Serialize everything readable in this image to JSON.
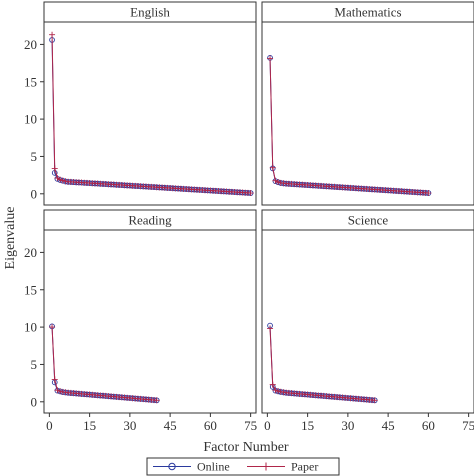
{
  "chart_data": {
    "type": "line",
    "xlabel": "Factor Number",
    "ylabel": "Eigenvalue",
    "xlim": [
      -2,
      77
    ],
    "ylim": [
      -1.5,
      23
    ],
    "xticks": [
      "0",
      "15",
      "30",
      "45",
      "60",
      "75"
    ],
    "yticks": [
      "0",
      "5",
      "10",
      "15",
      "20"
    ],
    "legend": {
      "position": "bottom-center",
      "entries": [
        {
          "name": "Online",
          "marker": "circle",
          "color": "#2b3a9e"
        },
        {
          "name": "Paper",
          "marker": "plus",
          "color": "#b0264a"
        }
      ]
    },
    "panels": [
      {
        "title": "English",
        "factors": 75,
        "series": [
          {
            "name": "Online",
            "head": [
              20.6,
              2.8,
              2.0,
              1.85,
              1.75,
              1.65
            ],
            "tail_start": 1.6,
            "tail_end": 0.1
          },
          {
            "name": "Paper",
            "head": [
              21.3,
              3.4,
              2.1,
              1.9,
              1.78,
              1.68
            ],
            "tail_start": 1.62,
            "tail_end": 0.1
          }
        ]
      },
      {
        "title": "Mathematics",
        "factors": 60,
        "series": [
          {
            "name": "Online",
            "head": [
              18.2,
              3.4,
              1.7,
              1.55,
              1.45,
              1.4
            ],
            "tail_start": 1.35,
            "tail_end": 0.1
          },
          {
            "name": "Paper",
            "head": [
              18.1,
              3.5,
              1.75,
              1.58,
              1.47,
              1.42
            ],
            "tail_start": 1.37,
            "tail_end": 0.1
          }
        ]
      },
      {
        "title": "Reading",
        "factors": 40,
        "series": [
          {
            "name": "Online",
            "head": [
              10.1,
              2.6,
              1.5,
              1.4,
              1.3,
              1.25
            ],
            "tail_start": 1.2,
            "tail_end": 0.2
          },
          {
            "name": "Paper",
            "head": [
              10.0,
              3.0,
              1.55,
              1.42,
              1.32,
              1.27
            ],
            "tail_start": 1.22,
            "tail_end": 0.2
          }
        ]
      },
      {
        "title": "Science",
        "factors": 40,
        "series": [
          {
            "name": "Online",
            "head": [
              10.2,
              2.0,
              1.5,
              1.4,
              1.32,
              1.26
            ],
            "tail_start": 1.2,
            "tail_end": 0.2
          },
          {
            "name": "Paper",
            "head": [
              9.8,
              2.3,
              1.55,
              1.43,
              1.34,
              1.28
            ],
            "tail_start": 1.22,
            "tail_end": 0.2
          }
        ]
      }
    ]
  }
}
